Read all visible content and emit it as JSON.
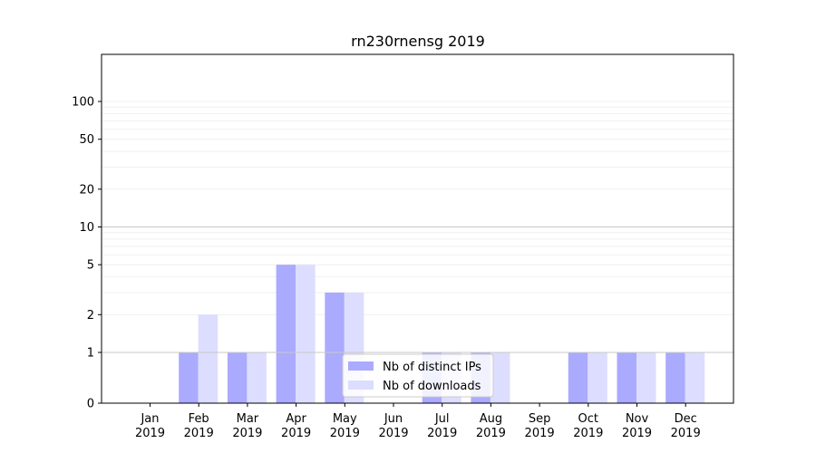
{
  "chart_data": {
    "type": "bar",
    "title": "rn230rnensg 2019",
    "xlabel": "",
    "ylabel": "",
    "y_scale": "symlog",
    "y_ticks": [
      0,
      1,
      2,
      5,
      10,
      20,
      50,
      100
    ],
    "y_tick_labels": [
      "0",
      "1",
      "2",
      "5",
      "10",
      "20",
      "50",
      "100"
    ],
    "categories": [
      {
        "month": "Jan",
        "year": "2019"
      },
      {
        "month": "Feb",
        "year": "2019"
      },
      {
        "month": "Mar",
        "year": "2019"
      },
      {
        "month": "Apr",
        "year": "2019"
      },
      {
        "month": "May",
        "year": "2019"
      },
      {
        "month": "Jun",
        "year": "2019"
      },
      {
        "month": "Jul",
        "year": "2019"
      },
      {
        "month": "Aug",
        "year": "2019"
      },
      {
        "month": "Sep",
        "year": "2019"
      },
      {
        "month": "Oct",
        "year": "2019"
      },
      {
        "month": "Nov",
        "year": "2019"
      },
      {
        "month": "Dec",
        "year": "2019"
      }
    ],
    "series": [
      {
        "name": "Nb of distinct IPs",
        "color": "#aaaaff",
        "values": [
          0,
          1,
          1,
          5,
          3,
          0,
          1,
          1,
          0,
          1,
          1,
          1
        ]
      },
      {
        "name": "Nb of downloads",
        "color": "#ddddff",
        "values": [
          0,
          2,
          1,
          5,
          3,
          0,
          1,
          1,
          0,
          1,
          1,
          1
        ]
      }
    ],
    "grid": true,
    "legend_position": "lower-center"
  }
}
